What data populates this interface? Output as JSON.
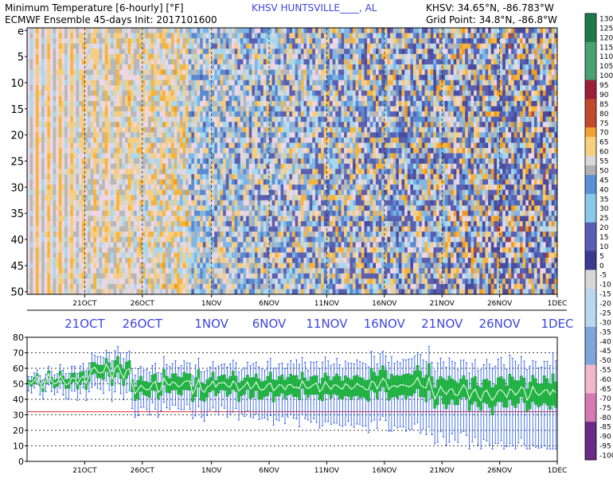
{
  "header": {
    "line1_left": "Minimum Temperature [6-hourly] [°F]",
    "station": "KHSV HUNTSVILLE____, AL",
    "line1_right": "KHSV: 34.65°N, -86.783°W",
    "line2_left": "ECMWF Ensemble 45-days Init: 2017101600",
    "line2_right": "Grid Point: 34.8°N, -86.8°W"
  },
  "colors": {
    "background": "#ffffff",
    "accent_blue": "#3b46e0",
    "box_green": "#22bb44",
    "whisker_blue": "#2255ee",
    "median_white": "#ffffff",
    "freeze_line": "#e03030"
  },
  "chart_data": [
    {
      "type": "heatmap",
      "title": "Minimum Temperature [6-hourly] [°F]",
      "y_tick_labels": [
        "e",
        "5",
        "10",
        "15",
        "20",
        "25",
        "30",
        "35",
        "40",
        "45",
        "50"
      ],
      "members": 51,
      "days": 46,
      "steps_per_day": 4,
      "x_tick_labels": [
        "21OCT",
        "26OCT",
        "1NOV",
        "6NOV",
        "11NOV",
        "16NOV",
        "21NOV",
        "26NOV",
        "1DEC"
      ],
      "x_tick_days": [
        5,
        10,
        16,
        21,
        26,
        31,
        36,
        41,
        46
      ],
      "date_banner_labels": [
        "21OCT",
        "26OCT",
        "1NOV",
        "6NOV",
        "11NOV",
        "16NOV",
        "21NOV",
        "26NOV",
        "1DEC"
      ],
      "colorbar": {
        "labels": [
          "130",
          "125",
          "120",
          "115",
          "110",
          "105",
          "100",
          "95",
          "90",
          "85",
          "80",
          "75",
          "70",
          "65",
          "60",
          "55",
          "50",
          "45",
          "40",
          "35",
          "30",
          "25",
          "20",
          "15",
          "10",
          "5",
          "0",
          "-5",
          "-10",
          "-15",
          "-20",
          "-25",
          "-30",
          "-35",
          "-40",
          "-45",
          "-50",
          "-55",
          "-60",
          "-65",
          "-70",
          "-75",
          "-80",
          "-85",
          "-90",
          "-95",
          "-100"
        ],
        "min": -100,
        "max": 130,
        "step": 5
      }
    },
    {
      "type": "box",
      "y_tick_labels": [
        "80",
        "70",
        "60",
        "50",
        "40",
        "30",
        "20",
        "10",
        "0"
      ],
      "ylim": [
        0,
        80
      ],
      "y_gridlines": [
        10,
        20,
        30,
        40,
        50,
        60,
        70
      ],
      "freeze_line": 32,
      "x_tick_labels": [
        "21OCT",
        "26OCT",
        "1NOV",
        "6NOV",
        "11NOV",
        "16NOV",
        "21NOV",
        "26NOV",
        "1DEC"
      ],
      "median_range": {
        "early": [
          44,
          60
        ],
        "mid": [
          45,
          52
        ],
        "late": [
          38,
          48
        ]
      },
      "whisker_range": {
        "low": [
          30,
          10
        ],
        "high": [
          72,
          74
        ]
      }
    }
  ]
}
